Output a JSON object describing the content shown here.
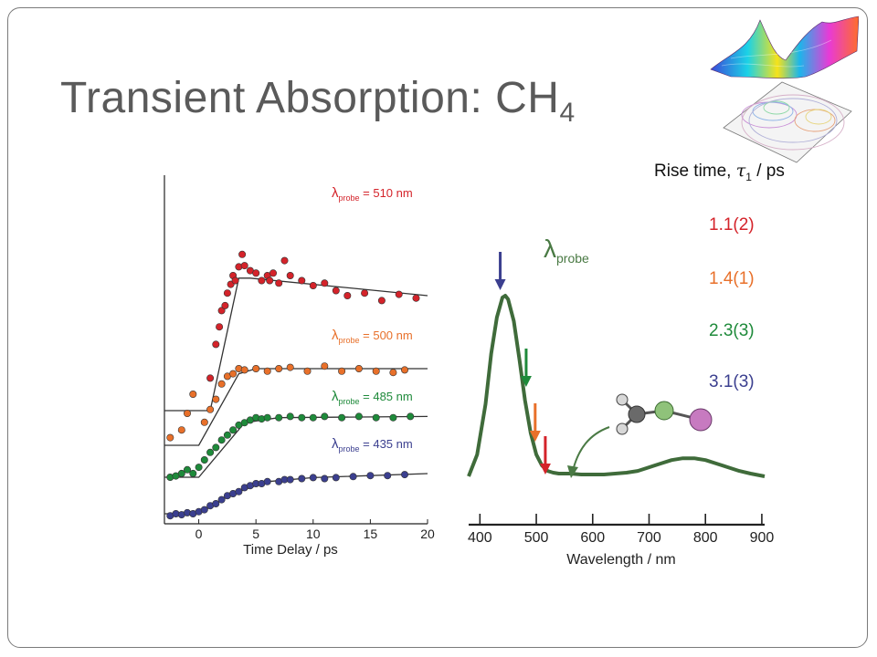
{
  "slide": {
    "title_main": "Transient Absorption: CH",
    "title_sub": "4"
  },
  "rise_times": {
    "header_prefix": "Rise time, ",
    "header_symbol": "τ",
    "header_subscript": "1",
    "header_suffix": " / ps",
    "items": [
      {
        "value": "1.1(2)",
        "color": "#d4232a"
      },
      {
        "value": "1.4(1)",
        "color": "#e8702a"
      },
      {
        "value": "2.3(3)",
        "color": "#1e8a3a"
      },
      {
        "value": "3.1(3)",
        "color": "#3b3f8f"
      }
    ]
  },
  "chart_data": [
    {
      "type": "scatter",
      "xlabel": "Time Delay / ps",
      "ylabel": "",
      "xlim": [
        -3,
        20
      ],
      "xticks": [
        0,
        5,
        10,
        15,
        20
      ],
      "series": [
        {
          "name": "λprobe = 510 nm",
          "label_lambda": "λ",
          "label_sub": "probe",
          "label_value": " = 510 nm",
          "color": "#d4232a",
          "points": [
            [
              1.0,
              26
            ],
            [
              1.5,
              53
            ],
            [
              1.8,
              67
            ],
            [
              2.0,
              80
            ],
            [
              2.3,
              84
            ],
            [
              2.5,
              94
            ],
            [
              2.8,
              101
            ],
            [
              3.0,
              108
            ],
            [
              3.2,
              104
            ],
            [
              3.5,
              115
            ],
            [
              4.0,
              116
            ],
            [
              4.5,
              112
            ],
            [
              5.0,
              110
            ],
            [
              5.5,
              104
            ],
            [
              6.0,
              108
            ],
            [
              6.2,
              104
            ],
            [
              6.5,
              110
            ],
            [
              7.0,
              102
            ],
            [
              7.5,
              120
            ],
            [
              8.0,
              108
            ],
            [
              9.0,
              104
            ],
            [
              10.0,
              100
            ],
            [
              11.0,
              102
            ],
            [
              12.0,
              96
            ],
            [
              13.0,
              92
            ],
            [
              14.5,
              94
            ],
            [
              16.0,
              88
            ],
            [
              17.5,
              93
            ],
            [
              19.0,
              90
            ],
            [
              3.8,
              125
            ]
          ],
          "fit": [
            [
              -3,
              0
            ],
            [
              1,
              0
            ],
            [
              3.5,
              106
            ],
            [
              4.5,
              106
            ],
            [
              20,
              92
            ]
          ]
        },
        {
          "name": "λprobe = 500 nm",
          "label_lambda": "λ",
          "label_sub": "probe",
          "label_value": " = 500 nm",
          "color": "#e8702a",
          "points": [
            [
              -2.5,
              6
            ],
            [
              -1.5,
              12
            ],
            [
              -1.0,
              25
            ],
            [
              -0.5,
              40
            ],
            [
              0.5,
              18
            ],
            [
              1.0,
              28
            ],
            [
              1.5,
              36
            ],
            [
              2.0,
              48
            ],
            [
              2.5,
              54
            ],
            [
              3.0,
              56
            ],
            [
              3.5,
              60
            ],
            [
              4.0,
              59
            ],
            [
              5.0,
              60
            ],
            [
              6.0,
              58
            ],
            [
              7.0,
              60
            ],
            [
              8.0,
              61
            ],
            [
              9.5,
              58
            ],
            [
              11.0,
              62
            ],
            [
              12.5,
              58
            ],
            [
              14.0,
              60
            ],
            [
              15.5,
              58
            ],
            [
              17.0,
              57
            ],
            [
              18.0,
              59
            ]
          ],
          "fit": [
            [
              -3,
              0
            ],
            [
              0,
              0
            ],
            [
              3.5,
              56
            ],
            [
              5,
              60
            ],
            [
              20,
              60
            ]
          ]
        },
        {
          "name": "λprobe = 485 nm",
          "label_lambda": "λ",
          "label_sub": "probe",
          "label_value": " = 485 nm",
          "color": "#1e8a3a",
          "points": [
            [
              -2.5,
              0
            ],
            [
              -2.0,
              1
            ],
            [
              -1.5,
              3
            ],
            [
              -1.0,
              6
            ],
            [
              -0.5,
              3
            ],
            [
              0,
              8
            ],
            [
              0.5,
              14
            ],
            [
              1.0,
              20
            ],
            [
              1.5,
              24
            ],
            [
              2.0,
              30
            ],
            [
              2.5,
              34
            ],
            [
              3.0,
              38
            ],
            [
              3.5,
              42
            ],
            [
              4.0,
              44
            ],
            [
              4.5,
              46
            ],
            [
              5.0,
              48
            ],
            [
              5.5,
              47
            ],
            [
              6.0,
              48
            ],
            [
              7.0,
              48
            ],
            [
              8.0,
              49
            ],
            [
              9.0,
              48
            ],
            [
              10.0,
              48
            ],
            [
              11.0,
              49
            ],
            [
              12.5,
              48
            ],
            [
              14.0,
              49
            ],
            [
              15.5,
              48
            ],
            [
              17.0,
              48
            ],
            [
              18.5,
              49
            ]
          ],
          "fit": [
            [
              -3,
              0
            ],
            [
              0,
              0
            ],
            [
              4,
              44
            ],
            [
              7,
              48
            ],
            [
              20,
              49
            ]
          ]
        },
        {
          "name": "λprobe = 435 nm",
          "label_lambda": "λ",
          "label_sub": "probe",
          "label_value": " = 435 nm",
          "color": "#3b3f8f",
          "points": [
            [
              -2.5,
              -2
            ],
            [
              -2.0,
              0
            ],
            [
              -1.5,
              -1
            ],
            [
              -1.0,
              1
            ],
            [
              -0.5,
              0
            ],
            [
              0,
              2
            ],
            [
              0.5,
              4
            ],
            [
              1.0,
              8
            ],
            [
              1.5,
              10
            ],
            [
              2.0,
              14
            ],
            [
              2.5,
              18
            ],
            [
              3.0,
              20
            ],
            [
              3.5,
              22
            ],
            [
              4.0,
              26
            ],
            [
              4.5,
              28
            ],
            [
              5.0,
              30
            ],
            [
              5.5,
              30
            ],
            [
              6.0,
              32
            ],
            [
              7.0,
              32
            ],
            [
              7.5,
              34
            ],
            [
              8.0,
              34
            ],
            [
              9.0,
              35
            ],
            [
              10.0,
              36
            ],
            [
              11.0,
              35
            ],
            [
              12.0,
              36
            ],
            [
              13.5,
              37
            ],
            [
              15.0,
              38
            ],
            [
              16.5,
              38
            ],
            [
              18.0,
              39
            ]
          ],
          "fit": [
            [
              -3,
              0
            ],
            [
              0,
              0
            ],
            [
              3,
              20
            ],
            [
              6,
              32
            ],
            [
              10,
              36
            ],
            [
              20,
              40
            ]
          ]
        }
      ]
    },
    {
      "type": "line",
      "xlabel": "Wavelength / nm",
      "ylabel": "",
      "xlim": [
        380,
        905
      ],
      "xticks": [
        400,
        500,
        600,
        700,
        800,
        900
      ],
      "annotation_lambda": "λ",
      "annotation_sub": "probe",
      "color": "#3f6b3a",
      "x": [
        380,
        395,
        410,
        420,
        430,
        440,
        445,
        450,
        460,
        470,
        480,
        490,
        500,
        510,
        520,
        530,
        540,
        560,
        580,
        600,
        620,
        640,
        660,
        680,
        700,
        720,
        740,
        760,
        780,
        800,
        820,
        840,
        860,
        880,
        905
      ],
      "y": [
        0.0,
        0.12,
        0.4,
        0.68,
        0.88,
        0.99,
        1.0,
        0.98,
        0.86,
        0.65,
        0.42,
        0.24,
        0.12,
        0.06,
        0.03,
        0.02,
        0.015,
        0.015,
        0.01,
        0.01,
        0.01,
        0.015,
        0.02,
        0.03,
        0.05,
        0.07,
        0.09,
        0.1,
        0.1,
        0.09,
        0.07,
        0.05,
        0.03,
        0.015,
        0.0
      ],
      "arrows": [
        {
          "x": 436,
          "color": "#3b3f8f"
        },
        {
          "x": 482,
          "color": "#1e8a3a"
        },
        {
          "x": 498,
          "color": "#e8702a"
        },
        {
          "x": 516,
          "color": "#d4232a"
        }
      ]
    }
  ]
}
